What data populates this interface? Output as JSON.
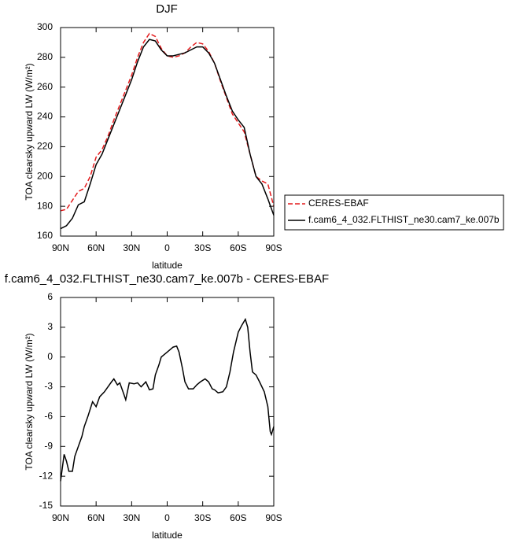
{
  "chart_data": [
    {
      "type": "line",
      "title": "DJF",
      "xlabel": "latitude",
      "ylabel": "TOA clearsky upward LW (W/m²)",
      "x": [
        90,
        85,
        80,
        75,
        70,
        65,
        60,
        55,
        50,
        45,
        40,
        35,
        30,
        25,
        20,
        15,
        10,
        5,
        0,
        -5,
        -10,
        -15,
        -20,
        -25,
        -30,
        -35,
        -40,
        -45,
        -50,
        -55,
        -60,
        -65,
        -70,
        -75,
        -80,
        -85,
        -90
      ],
      "series": [
        {
          "name": "CERES-EBAF",
          "color": "#e41a1c",
          "dash": true,
          "values": [
            177,
            178,
            184,
            190,
            192,
            200,
            213,
            218,
            227,
            238,
            248,
            258,
            268,
            280,
            290,
            296,
            294,
            286,
            281,
            280,
            281,
            283,
            287,
            290,
            289,
            284,
            276,
            264,
            253,
            242,
            236,
            230,
            215,
            200,
            197,
            195,
            180
          ]
        },
        {
          "name": "f.cam6_4_032.FLTHIST_ne30.cam7_ke.007b",
          "color": "#000000",
          "dash": false,
          "values": [
            165,
            167,
            172,
            181,
            183,
            195,
            208,
            215,
            225,
            235,
            245,
            255,
            265,
            277,
            287,
            292,
            291,
            285,
            281,
            281,
            282,
            283,
            285,
            287,
            287,
            283,
            276,
            265,
            254,
            244,
            238,
            233,
            215,
            200,
            195,
            185,
            174
          ]
        }
      ],
      "xlim": [
        90,
        -90
      ],
      "xticks": [
        {
          "value": 90,
          "label": "90N"
        },
        {
          "value": 60,
          "label": "60N"
        },
        {
          "value": 30,
          "label": "30N"
        },
        0,
        {
          "value": -30,
          "label": "30S"
        },
        {
          "value": -60,
          "label": "60S"
        },
        {
          "value": -90,
          "label": "90S"
        }
      ],
      "ylim": [
        160,
        300
      ],
      "yticks": [
        160,
        180,
        200,
        220,
        240,
        260,
        280,
        300
      ],
      "legend": "right"
    },
    {
      "type": "line",
      "title": "f.cam6_4_032.FLTHIST_ne30.cam7_ke.007b - CERES-EBAF",
      "xlabel": "latitude",
      "ylabel": "TOA clearsky upward LW (W/m²)",
      "x": [
        90,
        87,
        85,
        83,
        80,
        78,
        75,
        72,
        70,
        67,
        63,
        60,
        57,
        53,
        50,
        47,
        45,
        42,
        40,
        37,
        35,
        32,
        28,
        25,
        22,
        18,
        15,
        12,
        10,
        7,
        5,
        2,
        0,
        -5,
        -8,
        -10,
        -13,
        -15,
        -18,
        -22,
        -25,
        -28,
        -32,
        -35,
        -38,
        -40,
        -43,
        -47,
        -50,
        -53,
        -56,
        -58,
        -60,
        -63,
        -66,
        -68,
        -70,
        -72,
        -75,
        -78,
        -82,
        -85,
        -87,
        -88,
        -90
      ],
      "series": [
        {
          "color": "#000000",
          "dash": false,
          "values": [
            -12.5,
            -9.8,
            -10.5,
            -11.5,
            -11.5,
            -10,
            -9,
            -8,
            -7,
            -6,
            -4.5,
            -5,
            -4,
            -3.5,
            -3,
            -2.5,
            -2.2,
            -2.8,
            -2.6,
            -3.6,
            -4.3,
            -2.6,
            -2.7,
            -2.6,
            -3,
            -2.5,
            -3.3,
            -3.2,
            -1.8,
            -0.8,
            0,
            0.3,
            0.5,
            1,
            1.1,
            0.5,
            -1.2,
            -2.5,
            -3.2,
            -3.2,
            -2.8,
            -2.5,
            -2.2,
            -2.5,
            -3.2,
            -3.3,
            -3.6,
            -3.5,
            -3,
            -1.5,
            0.5,
            1.5,
            2.5,
            3.2,
            3.8,
            3,
            0.5,
            -1.5,
            -1.8,
            -2.5,
            -3.5,
            -5,
            -7.5,
            -7.8,
            -7
          ]
        }
      ],
      "xlim": [
        90,
        -90
      ],
      "xticks": [
        {
          "value": 90,
          "label": "90N"
        },
        {
          "value": 60,
          "label": "60N"
        },
        {
          "value": 30,
          "label": "30N"
        },
        0,
        {
          "value": -30,
          "label": "30S"
        },
        {
          "value": -60,
          "label": "60S"
        },
        {
          "value": -90,
          "label": "90S"
        }
      ],
      "ylim": [
        -15,
        6
      ],
      "yticks": [
        -15,
        -12,
        -9,
        -6,
        -3,
        0,
        3,
        6
      ]
    }
  ]
}
